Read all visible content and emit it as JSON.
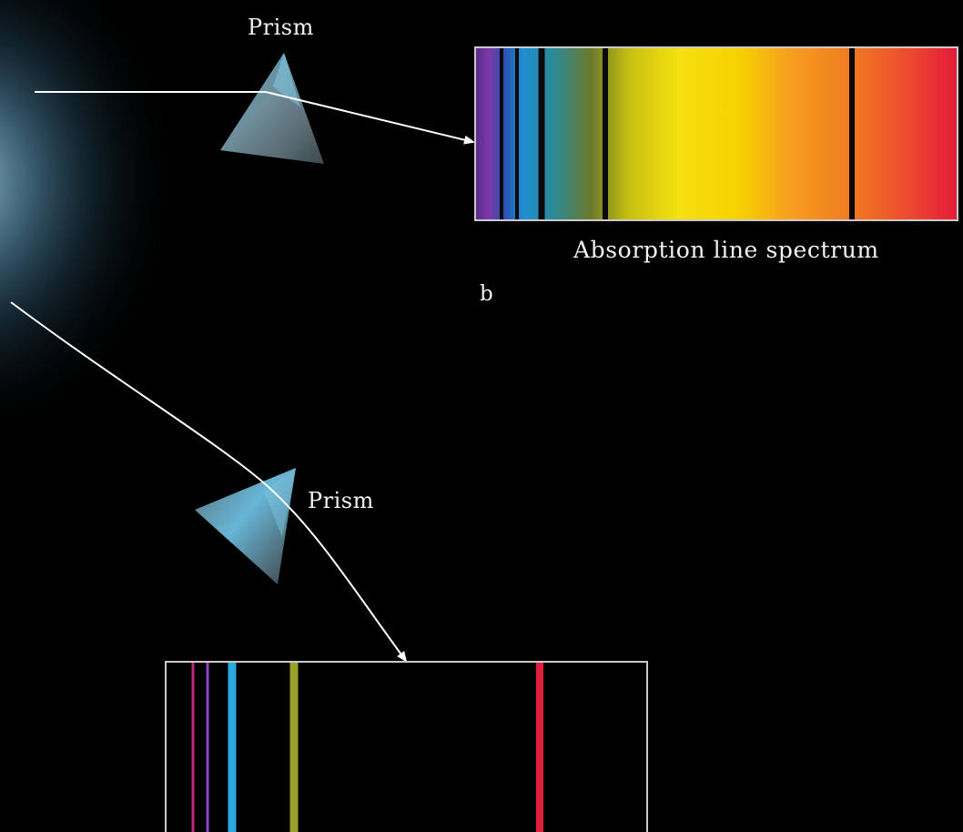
{
  "labels": {
    "prism_top": "Prism",
    "prism_bottom": "Prism",
    "absorption_caption": "Absorption line spectrum",
    "panel_letter": "b"
  },
  "colors": {
    "background": "#000000",
    "light_ray": "#ffffff",
    "glow": "#7fb7d6",
    "prism_light": "#6fc3e3",
    "prism_dark": "#5a6a72",
    "spectrum_border": "#c9c9c9",
    "absorption_line": "#0a0a0a"
  },
  "absorption_spectrum": {
    "gradient_stops": [
      {
        "offset": 0.0,
        "color": "#5a2a8a"
      },
      {
        "offset": 0.03,
        "color": "#7a3aa8"
      },
      {
        "offset": 0.06,
        "color": "#2a4fb0"
      },
      {
        "offset": 0.1,
        "color": "#1e8fcf"
      },
      {
        "offset": 0.16,
        "color": "#2a8a9a"
      },
      {
        "offset": 0.24,
        "color": "#6a7a2a"
      },
      {
        "offset": 0.32,
        "color": "#c8c010"
      },
      {
        "offset": 0.42,
        "color": "#f5e010"
      },
      {
        "offset": 0.55,
        "color": "#f7d000"
      },
      {
        "offset": 0.65,
        "color": "#f7a020"
      },
      {
        "offset": 0.78,
        "color": "#f07a20"
      },
      {
        "offset": 0.9,
        "color": "#ee4a30"
      },
      {
        "offset": 1.0,
        "color": "#e11a3a"
      }
    ],
    "dark_line_colors": [
      "#0a0a0a",
      "#0a0a0a",
      "#0a0a0a",
      "#0a0a0a",
      "#0a0a0a",
      "#0a0a0a"
    ]
  },
  "emission_spectrum": {
    "line_colors": [
      "#c0287a",
      "#8a48c8",
      "#2aa8e0",
      "#9aa028",
      "#e0203a"
    ]
  }
}
